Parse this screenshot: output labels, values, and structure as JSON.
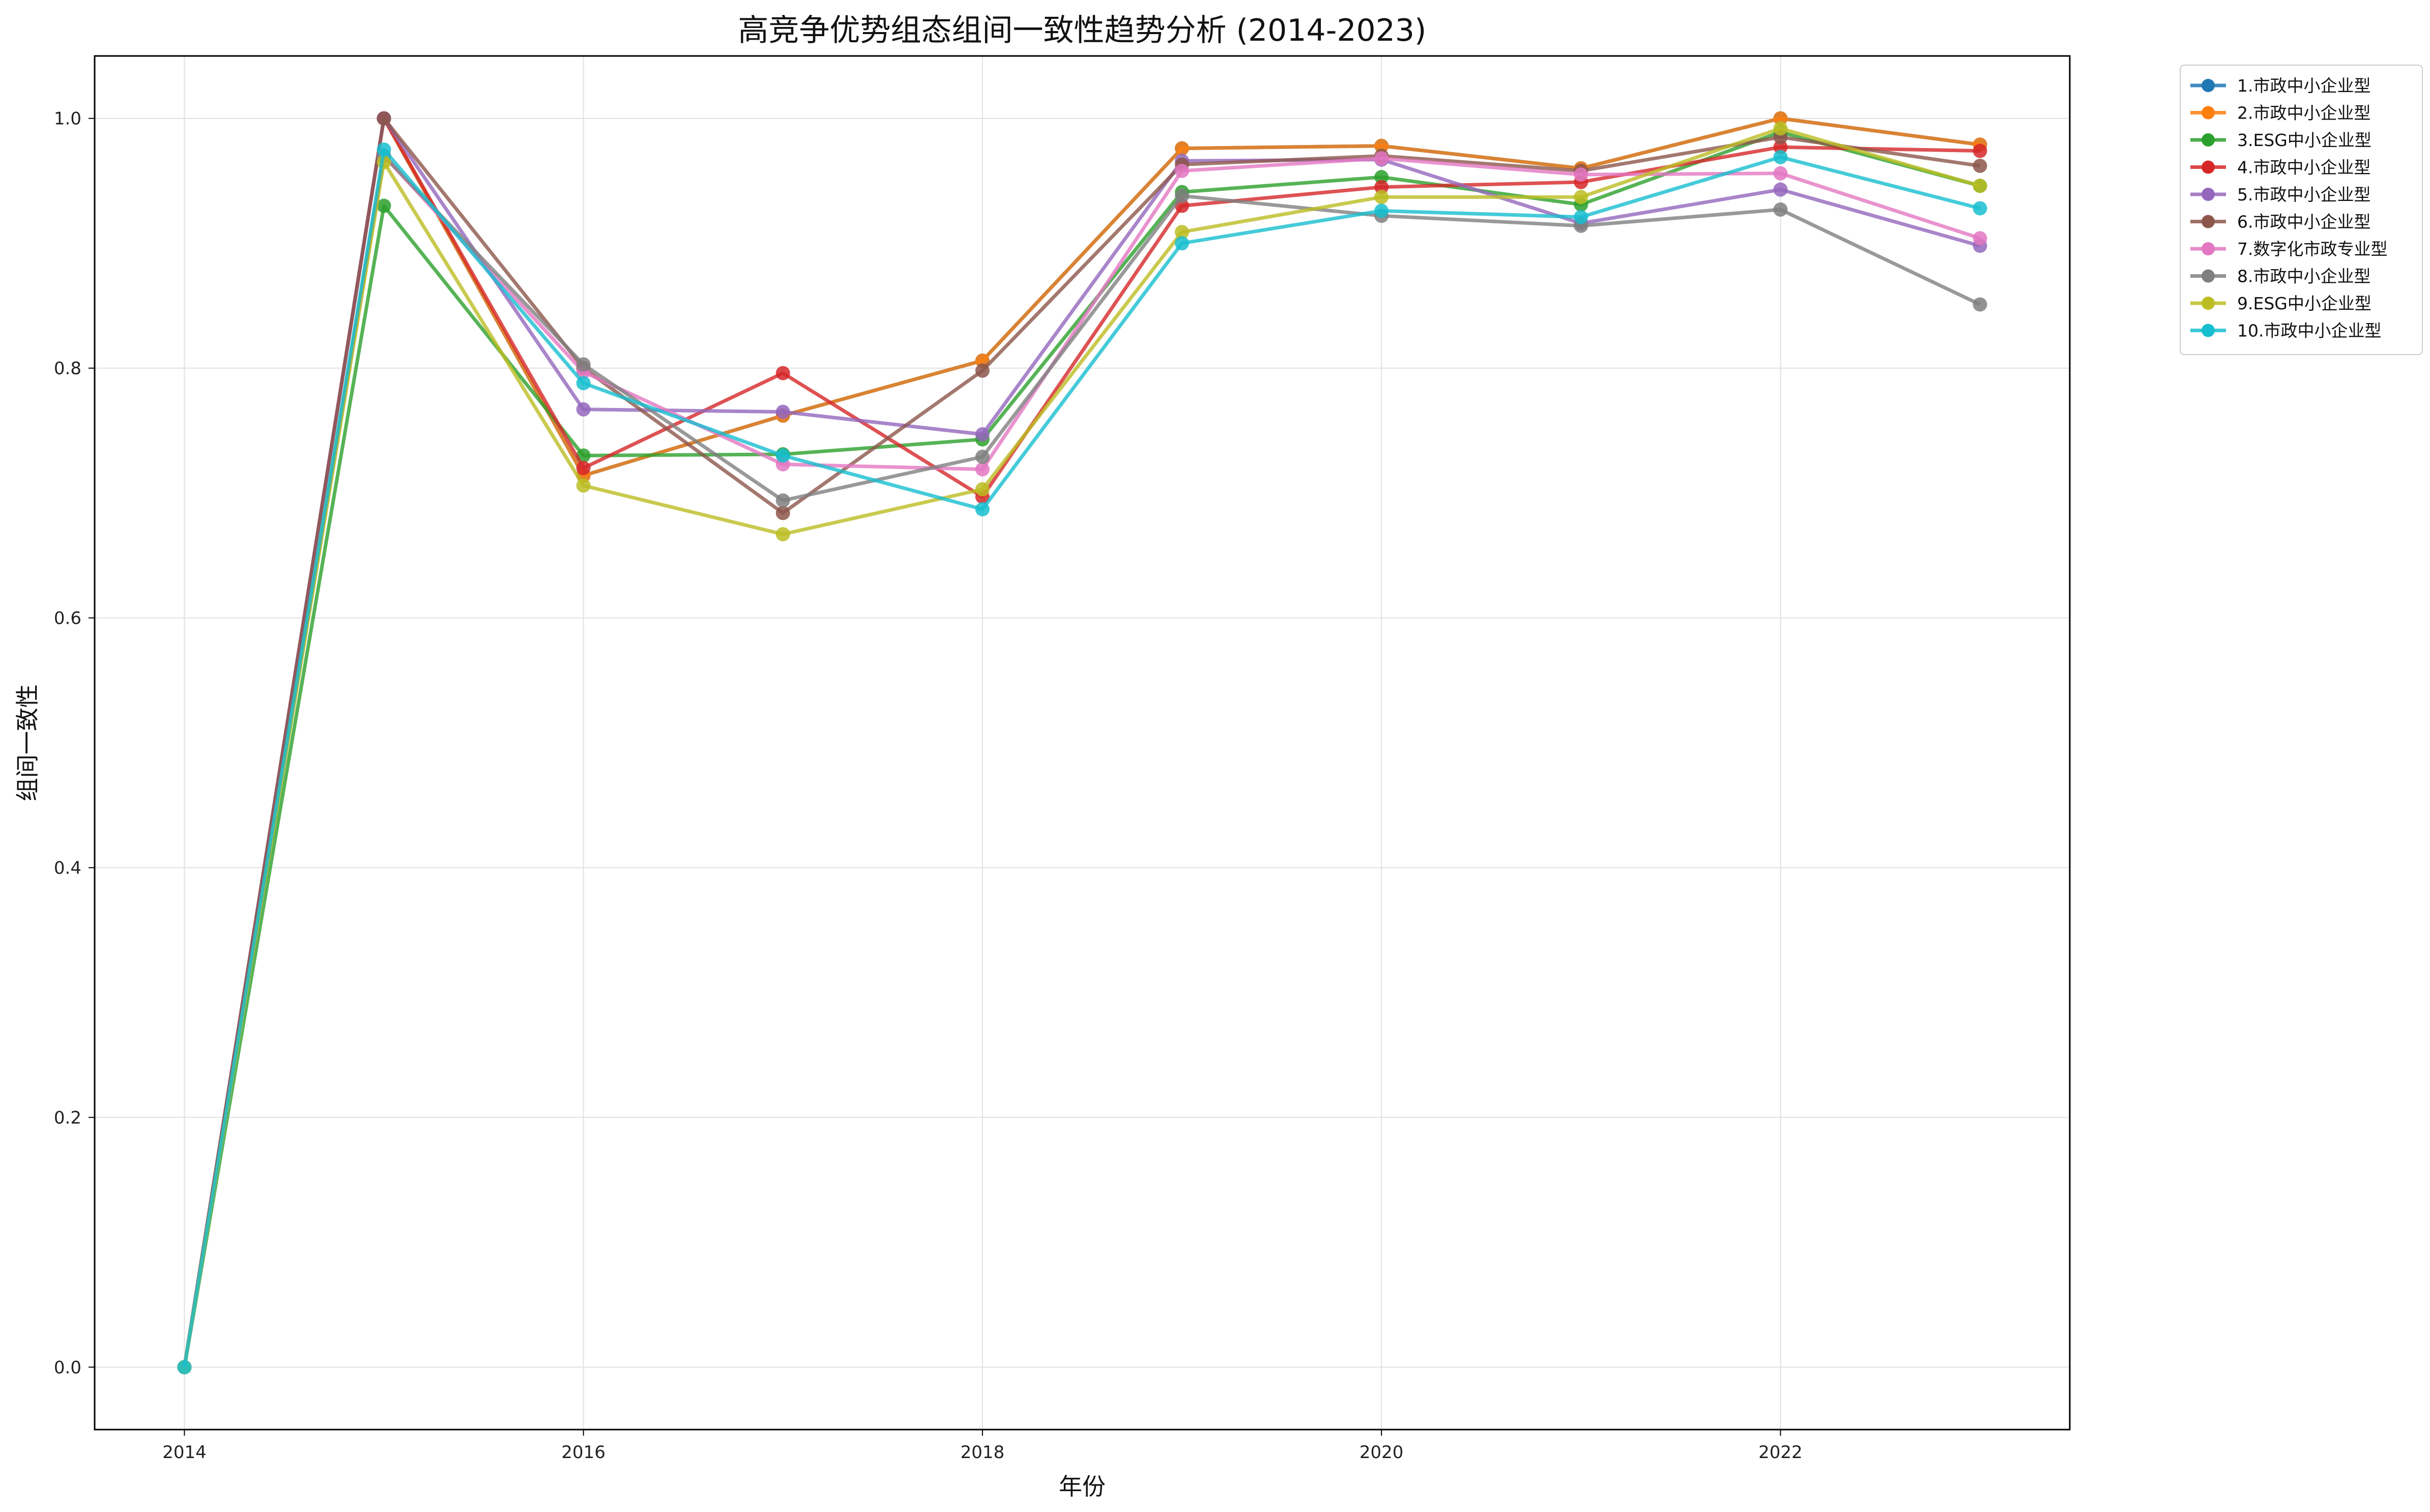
{
  "chart_data": {
    "type": "line",
    "title": "高竞争优势组态组间一致性趋势分析 (2014-2023)",
    "xlabel": "年份",
    "ylabel": "组间一致性",
    "x": [
      2014,
      2015,
      2016,
      2017,
      2018,
      2019,
      2020,
      2021,
      2022,
      2023
    ],
    "xlim": [
      2013.55,
      2023.45
    ],
    "ylim": [
      -0.05,
      1.05
    ],
    "xticks": [
      2014,
      2016,
      2018,
      2020,
      2022
    ],
    "yticks": [
      0.0,
      0.2,
      0.4,
      0.6,
      0.8,
      1.0
    ],
    "grid": true,
    "legend_position": "outside-top-right",
    "series": [
      {
        "name": "1.市政中小企业型",
        "color": "#1f77b4",
        "values": [
          0.0,
          1.0,
          0.714,
          0.762,
          0.806,
          0.976,
          0.978,
          0.96,
          1.0,
          0.979
        ]
      },
      {
        "name": "2.市政中小企业型",
        "color": "#ff7f0e",
        "values": [
          0.0,
          1.0,
          0.714,
          0.762,
          0.806,
          0.976,
          0.978,
          0.96,
          1.0,
          0.979
        ]
      },
      {
        "name": "3.ESG中小企业型",
        "color": "#2ca02c",
        "values": [
          0.0,
          0.93,
          0.73,
          0.731,
          0.743,
          0.941,
          0.953,
          0.931,
          0.989,
          0.946
        ]
      },
      {
        "name": "4.市政中小企业型",
        "color": "#d62728",
        "values": [
          0.0,
          1.0,
          0.72,
          0.796,
          0.697,
          0.93,
          0.945,
          0.949,
          0.977,
          0.974
        ]
      },
      {
        "name": "5.市政中小企业型",
        "color": "#9467bd",
        "values": [
          0.0,
          1.0,
          0.767,
          0.765,
          0.747,
          0.966,
          0.967,
          0.916,
          0.943,
          0.898
        ]
      },
      {
        "name": "6.市政中小企业型",
        "color": "#8c564b",
        "values": [
          0.0,
          1.0,
          0.8,
          0.684,
          0.798,
          0.963,
          0.97,
          0.958,
          0.985,
          0.962
        ]
      },
      {
        "name": "7.数字化市政专业型",
        "color": "#e377c2",
        "values": [
          0.0,
          0.97,
          0.797,
          0.723,
          0.719,
          0.958,
          0.968,
          0.955,
          0.956,
          0.904
        ]
      },
      {
        "name": "8.市政中小企业型",
        "color": "#7f7f7f",
        "values": [
          0.0,
          0.97,
          0.803,
          0.694,
          0.729,
          0.938,
          0.922,
          0.914,
          0.927,
          0.851
        ]
      },
      {
        "name": "9.ESG中小企业型",
        "color": "#bcbd22",
        "values": [
          0.0,
          0.965,
          0.706,
          0.667,
          0.703,
          0.909,
          0.937,
          0.937,
          0.992,
          0.946
        ]
      },
      {
        "name": "10.市政中小企业型",
        "color": "#17becf",
        "values": [
          0.0,
          0.975,
          0.788,
          0.73,
          0.687,
          0.9,
          0.926,
          0.921,
          0.969,
          0.928
        ]
      }
    ]
  }
}
